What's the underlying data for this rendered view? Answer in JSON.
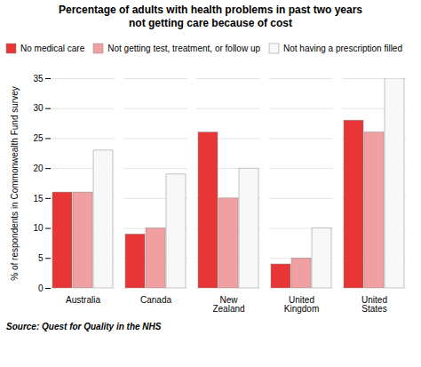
{
  "chart_data": {
    "type": "bar",
    "title": "Percentage of adults with health problems in past two years",
    "subtitle": "not getting care because of cost",
    "ylabel": "% of respondents in Commonwealth Fund survey",
    "caption": "Source: Quest for Quality in the NHS",
    "categories": [
      "Australia",
      "Canada",
      "New\nZealand",
      "United\nKingdom",
      "United\nStates"
    ],
    "series": [
      {
        "name": "No medical care",
        "color": "#e83535",
        "values": [
          16,
          9,
          26,
          4,
          28
        ]
      },
      {
        "name": "Not getting test, treatment, or follow up",
        "color": "#f0a0a0",
        "values": [
          16,
          10,
          15,
          5,
          26
        ]
      },
      {
        "name": "Not having a prescription filled",
        "color": "#f8f8f8",
        "values": [
          23,
          19,
          20,
          10,
          35
        ]
      }
    ],
    "ylim": [
      0,
      35
    ],
    "yticks": [
      0,
      5,
      10,
      15,
      20,
      25,
      30,
      35
    ],
    "grid": true,
    "legend": "upper left"
  }
}
